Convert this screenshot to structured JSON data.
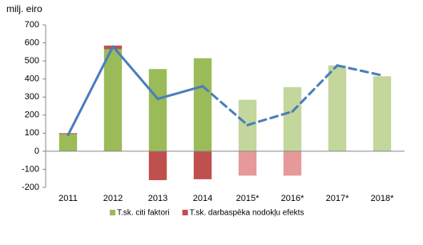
{
  "chart_data": {
    "type": "bar",
    "stacked": true,
    "y_label": "milj. eiro",
    "categories": [
      "2011",
      "2012",
      "2013",
      "2014",
      "2015*",
      "2016*",
      "2017*",
      "2018*"
    ],
    "series": [
      {
        "name": "T.sk. citi faktori",
        "color": "#9bbb59",
        "colors": [
          "#9bbb59",
          "#9bbb59",
          "#9bbb59",
          "#9bbb59",
          "#c3d69b",
          "#c3d69b",
          "#c3d69b",
          "#c3d69b"
        ],
        "values": [
          95,
          565,
          455,
          515,
          285,
          355,
          475,
          415
        ]
      },
      {
        "name": "T.sk. darbaspēka nodokļu efekts",
        "color": "#c0504d",
        "colors": [
          "#c0504d",
          "#c0504d",
          "#c0504d",
          "#c0504d",
          "#e6999a",
          "#e6999a",
          "#e6999a",
          "#e6999a"
        ],
        "values": [
          5,
          20,
          -160,
          -155,
          -135,
          -135,
          null,
          null
        ]
      },
      {
        "type": "line",
        "color": "#4a7ebb",
        "line_styles": [
          "solid",
          "solid",
          "solid",
          "solid",
          "dashed",
          "dashed",
          "dashed",
          "dashed"
        ],
        "values": [
          90,
          580,
          290,
          360,
          145,
          220,
          475,
          420
        ]
      }
    ],
    "ylim": [
      -200,
      700
    ],
    "yticks": [
      -200,
      -100,
      0,
      100,
      200,
      300,
      400,
      500,
      600,
      700
    ],
    "grid": false,
    "legend": "bottom"
  }
}
